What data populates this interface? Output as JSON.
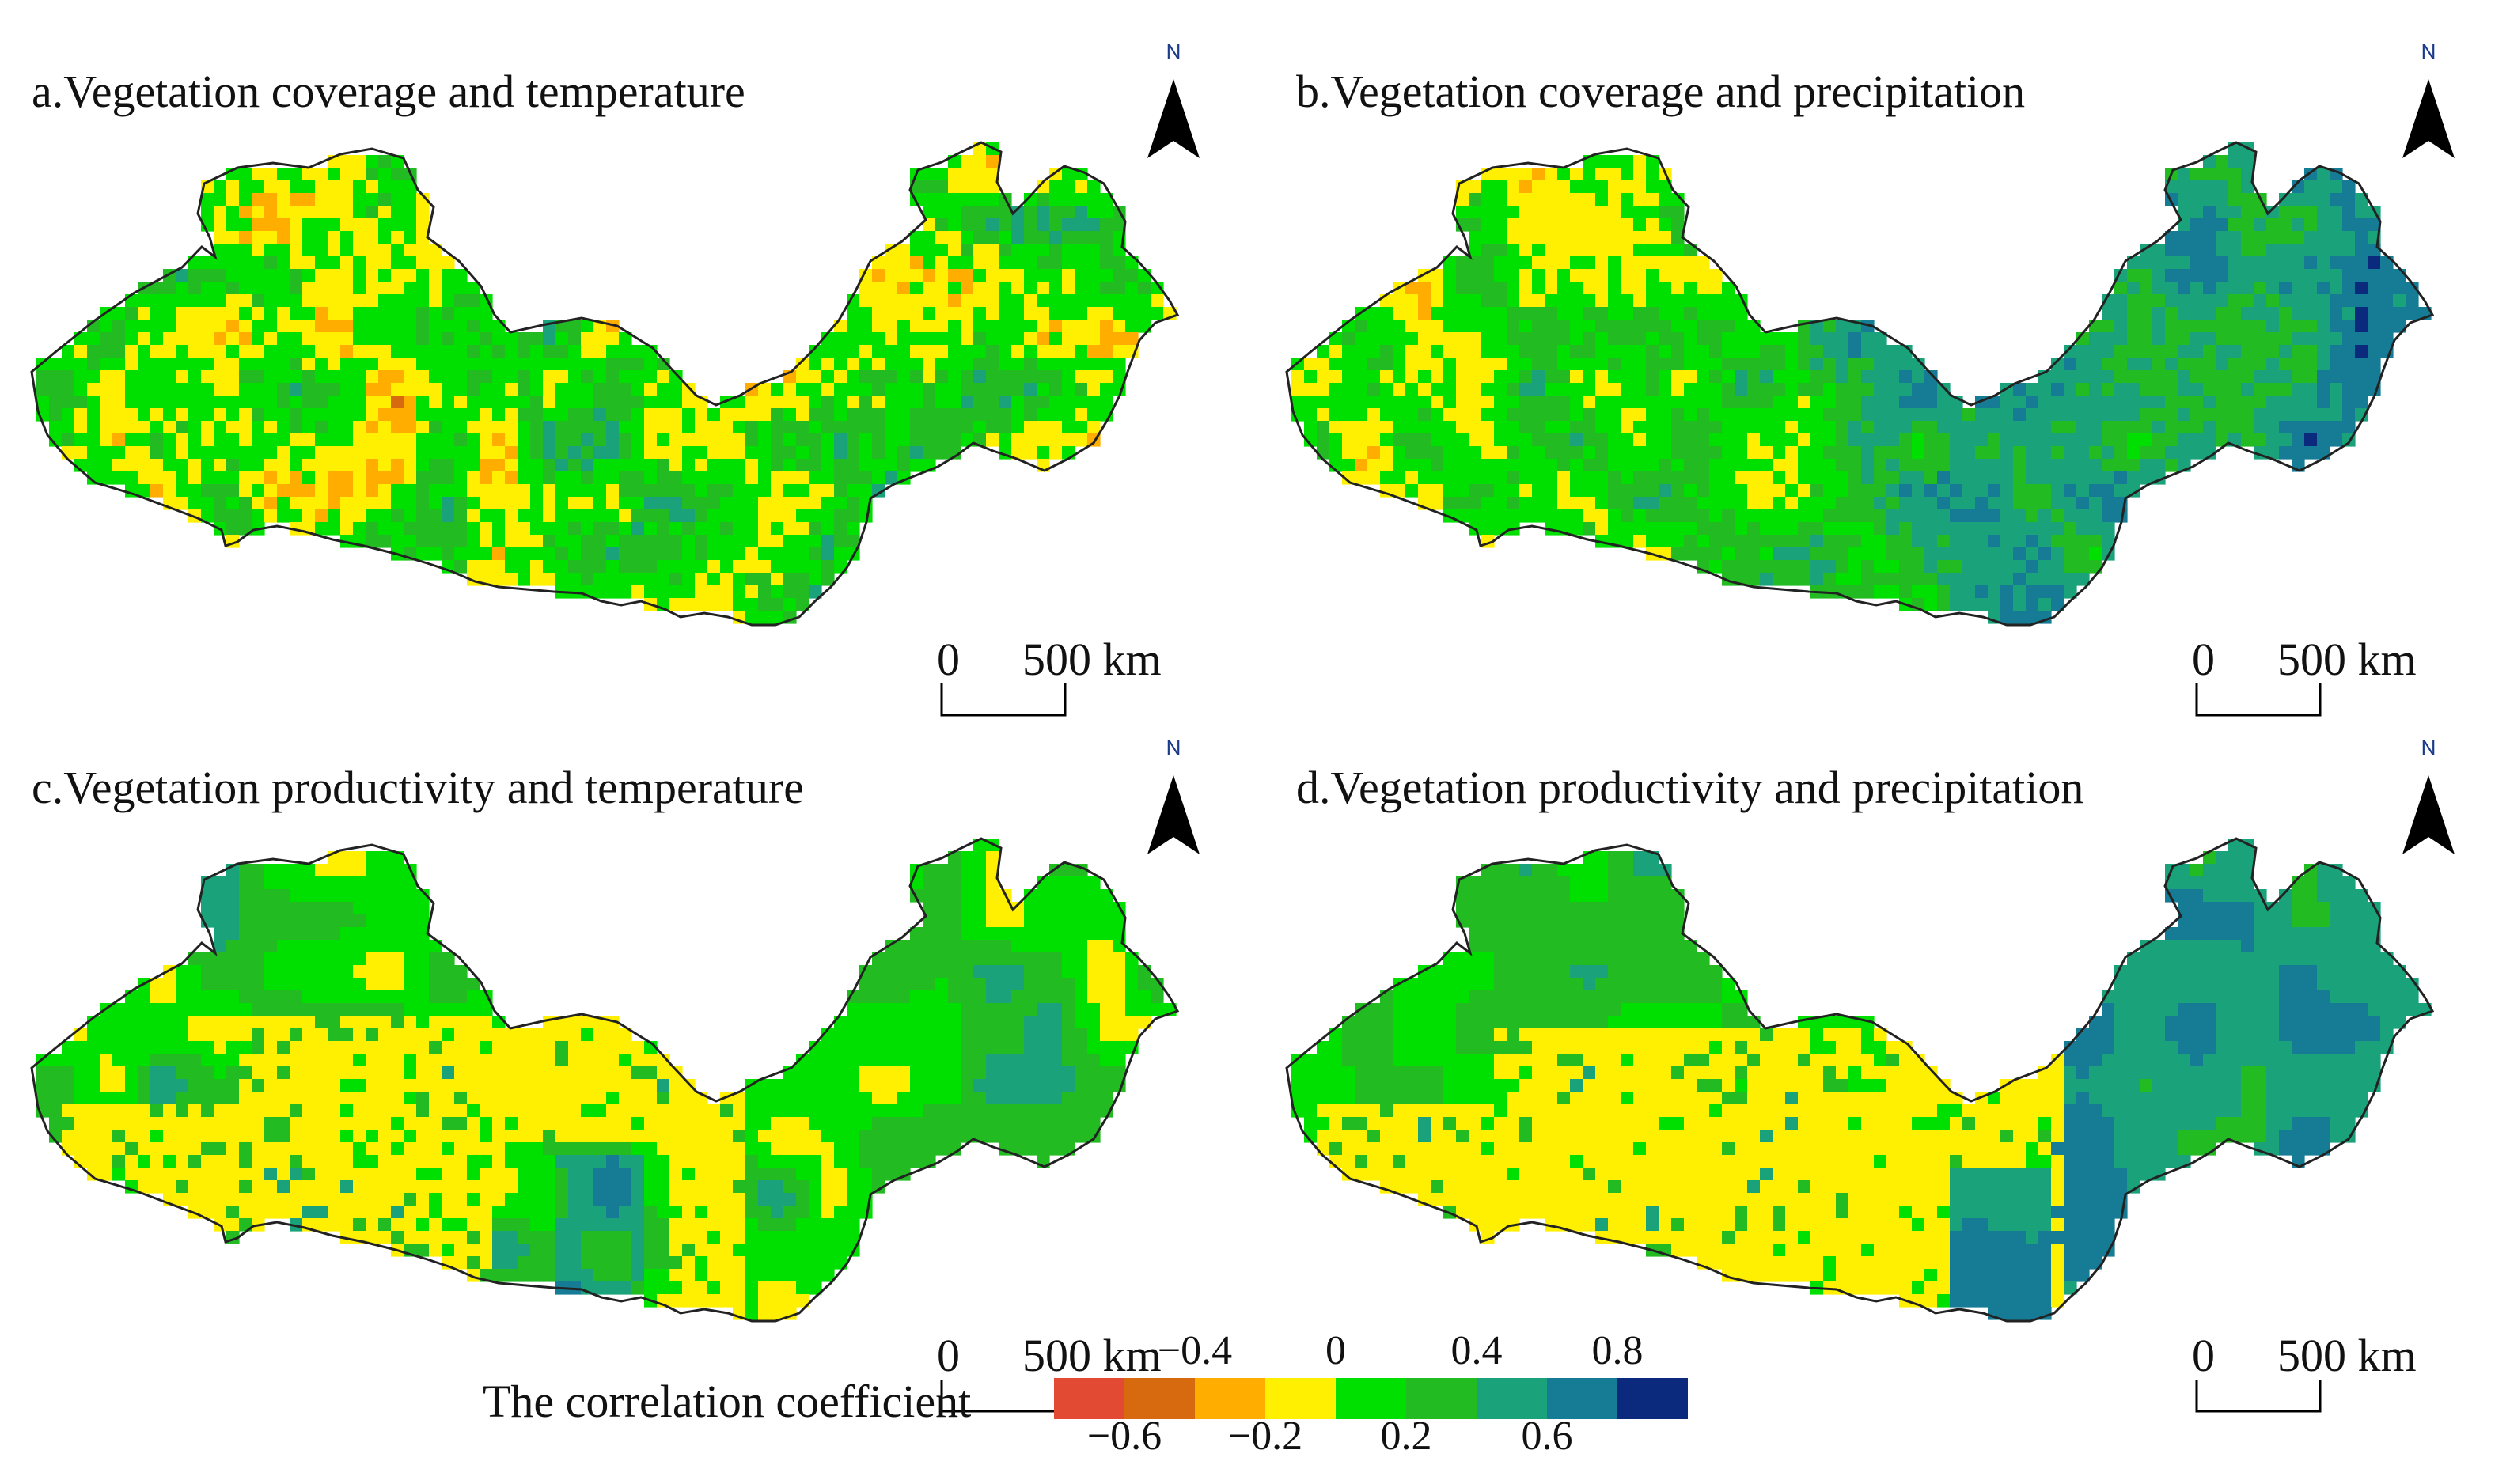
{
  "panels": [
    {
      "id": "a",
      "title": "a.Vegetation coverage and temperature",
      "scheme": "tempCov"
    },
    {
      "id": "b",
      "title": "b.Vegetation coverage and precipitation",
      "scheme": "precCov"
    },
    {
      "id": "c",
      "title": "c.Vegetation productivity and temperature",
      "scheme": "tempProd"
    },
    {
      "id": "d",
      "title": "d.Vegetation productivity and precipitation",
      "scheme": "precProd"
    }
  ],
  "north_label": "N",
  "scale": {
    "zero": "0",
    "distance": "500 km"
  },
  "legend": {
    "title": "The correlation coefficient",
    "colors": [
      "#e34a33",
      "#d7690f",
      "#ffae00",
      "#ffef00",
      "#00e000",
      "#22bb22",
      "#1aa27a",
      "#167c95",
      "#0b2a7d"
    ],
    "ticks_top": [
      "−0.4",
      "0",
      "0.4",
      "0.8"
    ],
    "ticks_bottom": [
      "−0.6",
      "−0.2",
      "0.2",
      "0.6"
    ]
  }
}
